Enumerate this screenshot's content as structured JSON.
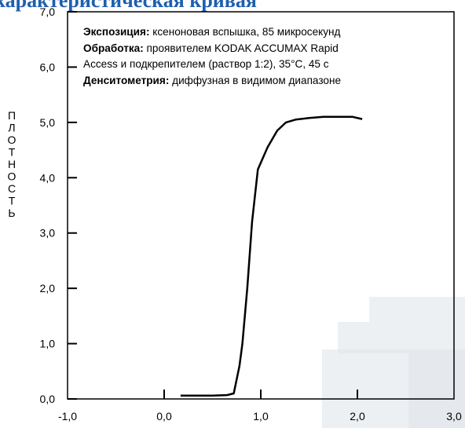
{
  "title": "характеристическая кривая",
  "watermark_color": "#dfe3ea",
  "annotations": [
    {
      "key": "Экспозиция:",
      "text": " ксеноновая вспышка, 85 микросекунд"
    },
    {
      "key": "Обработка:",
      "text": " проявителем KODAK ACCUMAX Rapid"
    },
    {
      "key": "",
      "text": "Access и подкрепителем (раствор 1:2), 35°C, 45 с"
    },
    {
      "key": "Денситометрия:",
      "text": " диффузная в видимом диапазоне"
    }
  ],
  "chart_data": {
    "type": "line",
    "title": "характеристическая кривая",
    "xlabel": "",
    "ylabel": "ПЛОТНОСТЬ",
    "xlim": [
      -1.0,
      3.0
    ],
    "ylim": [
      0.0,
      7.0
    ],
    "x_ticks": [
      "-1,0",
      "0,0",
      "1,0",
      "2,0",
      "3,0"
    ],
    "y_ticks": [
      "0,0",
      "1,0",
      "2,0",
      "3,0",
      "4,0",
      "5,0",
      "6,0",
      "7,0"
    ],
    "grid": false,
    "series": [
      {
        "color": "#000000",
        "x": [
          0.17,
          0.3,
          0.5,
          0.65,
          0.72,
          0.78,
          0.81,
          0.86,
          0.91,
          0.97,
          1.07,
          1.17,
          1.26,
          1.36,
          1.5,
          1.65,
          1.8,
          1.95,
          2.05
        ],
        "y": [
          0.06,
          0.06,
          0.06,
          0.07,
          0.1,
          0.6,
          1.0,
          2.0,
          3.2,
          4.15,
          4.55,
          4.85,
          5.0,
          5.05,
          5.08,
          5.1,
          5.1,
          5.1,
          5.06
        ]
      }
    ]
  }
}
